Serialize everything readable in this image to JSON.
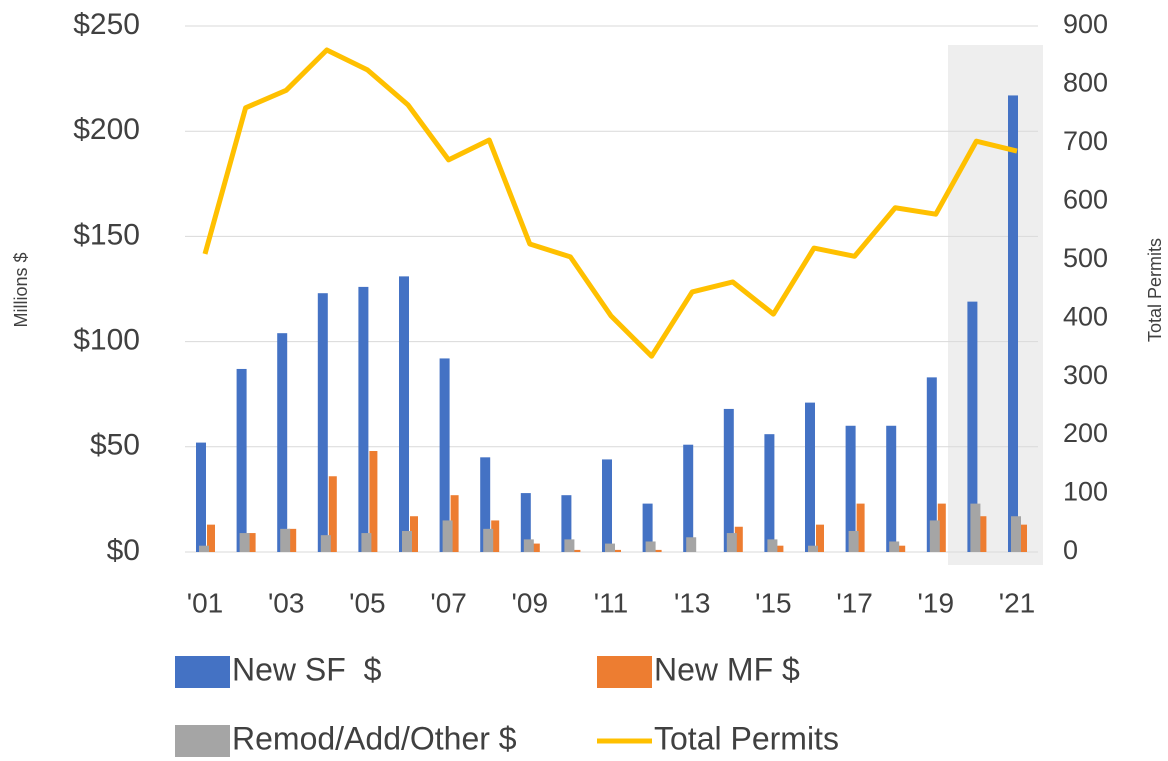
{
  "chart_data": {
    "type": "bar",
    "y_label": "Millions $",
    "y2_label": "Total Permits",
    "categories": [
      "'01",
      null,
      "'03",
      null,
      "'05",
      null,
      "'07",
      null,
      "'09",
      null,
      "'11",
      null,
      "'13",
      null,
      "'15",
      null,
      "'17",
      null,
      "'19",
      null,
      "'21"
    ],
    "series": [
      {
        "name": "New SF  $",
        "color": "#4472c4",
        "values": [
          52,
          87,
          104,
          123,
          126,
          131,
          92,
          45,
          28,
          27,
          44,
          23,
          51,
          68,
          56,
          71,
          60,
          60,
          83,
          119,
          217
        ]
      },
      {
        "name": "New MF $",
        "color": "#ed7d31",
        "values": [
          13,
          9,
          11,
          36,
          48,
          17,
          27,
          15,
          4,
          1,
          1,
          1,
          0,
          12,
          3,
          13,
          23,
          3,
          23,
          17,
          13
        ]
      },
      {
        "name": "Remod/Add/Other $",
        "color": "#a5a5a5",
        "values": [
          3,
          9,
          11,
          8,
          9,
          10,
          15,
          11,
          6,
          6,
          4,
          5,
          7,
          9,
          6,
          3,
          10,
          5,
          15,
          23,
          17
        ]
      },
      {
        "name": "Total Permits",
        "color": "#ffc000",
        "type": "line",
        "axis": "y2",
        "values": [
          510,
          760,
          790,
          859,
          825,
          765,
          671,
          705,
          527,
          505,
          404,
          335,
          445,
          462,
          407,
          520,
          506,
          589,
          578,
          703,
          686
        ]
      }
    ],
    "ylim": [
      0,
      250
    ],
    "yticks": [
      {
        "value": 0,
        "label": "$0"
      },
      {
        "value": 50,
        "label": "$50"
      },
      {
        "value": 100,
        "label": "$100"
      },
      {
        "value": 150,
        "label": "$150"
      },
      {
        "value": 200,
        "label": "$200"
      },
      {
        "value": 250,
        "label": "$250"
      }
    ],
    "y2lim": [
      0,
      900
    ],
    "y2ticks": [
      0,
      100,
      200,
      300,
      400,
      500,
      600,
      700,
      800,
      900
    ],
    "grid": true
  }
}
